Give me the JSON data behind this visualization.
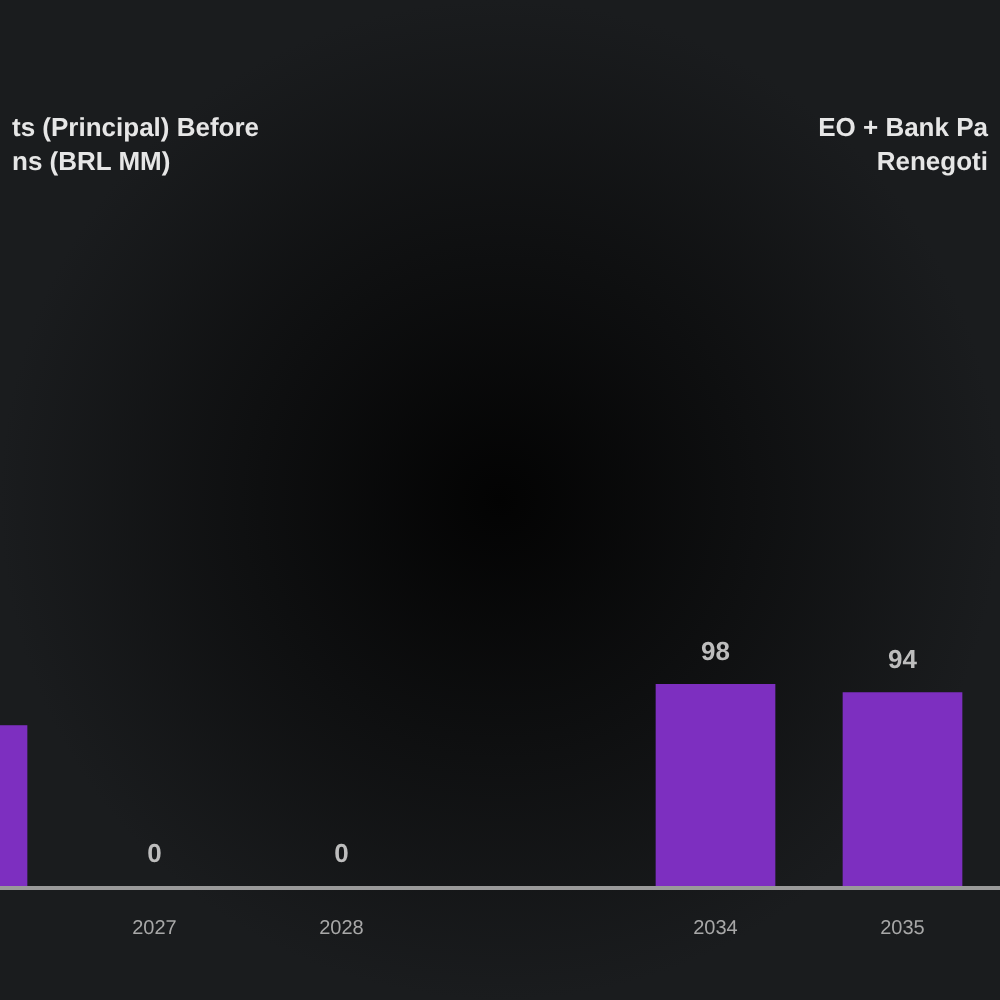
{
  "chart_data": {
    "type": "bar",
    "title": "ts (Principal) Before\nns (BRL MM)",
    "annotations": [
      "EO + Bank Pa\nRenegoti"
    ],
    "categories": [
      null,
      "2027",
      "2028",
      null,
      "2034",
      "2035"
    ],
    "values": [
      78,
      0,
      0,
      null,
      98,
      94
    ],
    "value_labels": [
      null,
      "0",
      "0",
      null,
      "98",
      "94"
    ],
    "color": "#7d2fc0"
  }
}
